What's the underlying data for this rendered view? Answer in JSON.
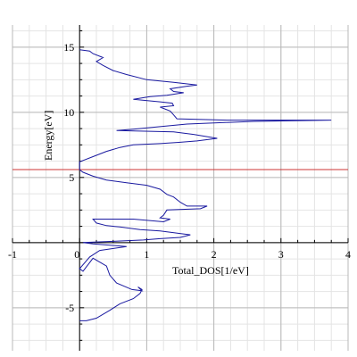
{
  "chart_data": {
    "type": "line",
    "title": "",
    "xlabel": "Total_DOS[1/eV]",
    "ylabel": "Energy[eV]",
    "xlim": [
      -1,
      4
    ],
    "ylim": [
      -8.3,
      16.7
    ],
    "x_ticks": [
      -1,
      0,
      1,
      2,
      3,
      4
    ],
    "y_ticks": [
      -5,
      5,
      10,
      15
    ],
    "grid": true,
    "reference_line": {
      "y": 5.6,
      "color": "#cc3333"
    },
    "series": [
      {
        "color": "#1a1aa0",
        "points": [
          [
            0.0,
            -6.0
          ],
          [
            0.1,
            -6.0
          ],
          [
            0.25,
            -5.8
          ],
          [
            0.45,
            -5.2
          ],
          [
            0.6,
            -4.7
          ],
          [
            0.8,
            -4.3
          ],
          [
            0.9,
            -3.9
          ],
          [
            0.93,
            -3.6
          ],
          [
            0.87,
            -3.4
          ],
          [
            0.93,
            -3.7
          ],
          [
            0.78,
            -3.6
          ],
          [
            0.55,
            -3.1
          ],
          [
            0.45,
            -2.5
          ],
          [
            0.4,
            -1.8
          ],
          [
            0.3,
            -1.5
          ],
          [
            0.2,
            -1.2
          ],
          [
            0.05,
            -2.2
          ],
          [
            0.0,
            -2.0
          ],
          [
            0.15,
            -1.1
          ],
          [
            0.3,
            -0.6
          ],
          [
            0.7,
            -0.3
          ],
          [
            0.2,
            -0.1
          ],
          [
            0.05,
            0.0
          ],
          [
            0.5,
            0.1
          ],
          [
            0.95,
            0.2
          ],
          [
            1.2,
            0.3
          ],
          [
            1.5,
            0.4
          ],
          [
            1.65,
            0.6
          ],
          [
            1.2,
            0.9
          ],
          [
            0.9,
            1.0
          ],
          [
            0.6,
            1.2
          ],
          [
            0.4,
            1.3
          ],
          [
            0.25,
            1.5
          ],
          [
            0.2,
            1.8
          ],
          [
            0.35,
            1.8
          ],
          [
            0.8,
            1.8
          ],
          [
            1.25,
            1.6
          ],
          [
            1.35,
            1.8
          ],
          [
            1.2,
            1.9
          ],
          [
            1.25,
            2.1
          ],
          [
            1.3,
            2.5
          ],
          [
            1.8,
            2.6
          ],
          [
            1.9,
            2.8
          ],
          [
            1.6,
            2.8
          ],
          [
            1.5,
            3.1
          ],
          [
            1.4,
            3.5
          ],
          [
            1.3,
            3.7
          ],
          [
            1.2,
            4.1
          ],
          [
            1.0,
            4.4
          ],
          [
            0.7,
            4.6
          ],
          [
            0.4,
            4.8
          ],
          [
            0.2,
            5.1
          ],
          [
            0.05,
            5.4
          ],
          [
            0.0,
            5.6
          ],
          [
            0.0,
            5.8
          ],
          [
            0.0,
            6.2
          ],
          [
            0.2,
            6.6
          ],
          [
            0.4,
            7.0
          ],
          [
            0.6,
            7.3
          ],
          [
            0.8,
            7.5
          ],
          [
            1.2,
            7.6
          ],
          [
            1.5,
            7.7
          ],
          [
            1.75,
            7.8
          ],
          [
            2.05,
            8.0
          ],
          [
            1.7,
            8.3
          ],
          [
            1.4,
            8.5
          ],
          [
            0.55,
            8.6
          ],
          [
            0.8,
            8.7
          ],
          [
            1.2,
            8.9
          ],
          [
            1.6,
            9.1
          ],
          [
            2.6,
            9.3
          ],
          [
            3.75,
            9.4
          ],
          [
            2.2,
            9.4
          ],
          [
            1.45,
            9.5
          ],
          [
            1.4,
            9.8
          ],
          [
            1.35,
            10.1
          ],
          [
            1.2,
            10.4
          ],
          [
            1.4,
            10.5
          ],
          [
            1.38,
            10.7
          ],
          [
            1.2,
            10.8
          ],
          [
            0.8,
            11.0
          ],
          [
            1.05,
            11.2
          ],
          [
            1.3,
            11.3
          ],
          [
            1.55,
            11.5
          ],
          [
            1.4,
            11.6
          ],
          [
            1.35,
            11.8
          ],
          [
            1.6,
            12.0
          ],
          [
            1.75,
            12.1
          ],
          [
            1.4,
            12.3
          ],
          [
            1.0,
            12.5
          ],
          [
            0.7,
            12.9
          ],
          [
            0.5,
            13.2
          ],
          [
            0.35,
            13.6
          ],
          [
            0.25,
            13.9
          ],
          [
            0.35,
            14.2
          ],
          [
            0.2,
            14.5
          ],
          [
            0.15,
            14.7
          ],
          [
            0.0,
            14.8
          ]
        ]
      }
    ]
  }
}
